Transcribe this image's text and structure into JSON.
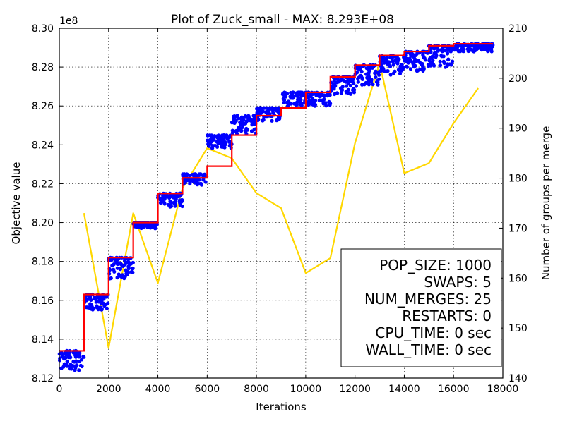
{
  "chart_data": {
    "type": "scatter",
    "title": "Plot of Zuck_small - MAX: 8.293E+08",
    "xlabel": "Iterations",
    "ylabel": "Objective value",
    "y2label": "Number of groups per merge",
    "y_offset_label": "1e8",
    "xlim": [
      0,
      18000
    ],
    "ylim": [
      8.12,
      8.3
    ],
    "y2lim": [
      140,
      210
    ],
    "xticks": [
      "0",
      "2000",
      "4000",
      "6000",
      "8000",
      "10000",
      "12000",
      "14000",
      "16000",
      "18000"
    ],
    "yticks": [
      "8.12",
      "8.14",
      "8.16",
      "8.18",
      "8.20",
      "8.22",
      "8.24",
      "8.26",
      "8.28",
      "8.30"
    ],
    "y2ticks": [
      "140",
      "150",
      "160",
      "170",
      "180",
      "190",
      "200",
      "210"
    ],
    "grid": true,
    "colors": {
      "population": "#0000ff",
      "best": "#ff0000",
      "groups": "#ffd700"
    },
    "series": [
      {
        "type": "step",
        "axis": "left",
        "color": "#ff0000",
        "x": [
          0,
          1000,
          2000,
          3000,
          4000,
          5000,
          6000,
          7000,
          8000,
          9000,
          10000,
          11000,
          12000,
          13000,
          14000,
          15000,
          16000,
          17600
        ],
        "values": [
          8.134,
          8.163,
          8.182,
          8.2,
          8.215,
          8.223,
          8.229,
          8.245,
          8.255,
          8.259,
          8.267,
          8.275,
          8.281,
          8.286,
          8.288,
          8.291,
          8.292,
          8.292
        ]
      },
      {
        "type": "scatter",
        "axis": "left",
        "color": "#0000ff",
        "bands": [
          {
            "x": [
              0,
              1000
            ],
            "y": [
              8.124,
              8.134
            ]
          },
          {
            "x": [
              1000,
              2000
            ],
            "y": [
              8.155,
              8.163
            ]
          },
          {
            "x": [
              2000,
              3000
            ],
            "y": [
              8.171,
              8.182
            ]
          },
          {
            "x": [
              3000,
              4000
            ],
            "y": [
              8.197,
              8.2
            ]
          },
          {
            "x": [
              4000,
              5000
            ],
            "y": [
              8.208,
              8.215
            ]
          },
          {
            "x": [
              5000,
              6000
            ],
            "y": [
              8.219,
              8.225
            ]
          },
          {
            "x": [
              6000,
              7000
            ],
            "y": [
              8.238,
              8.245
            ]
          },
          {
            "x": [
              7000,
              8000
            ],
            "y": [
              8.245,
              8.255
            ]
          },
          {
            "x": [
              8000,
              9000
            ],
            "y": [
              8.252,
              8.259
            ]
          },
          {
            "x": [
              9000,
              10000
            ],
            "y": [
              8.26,
              8.267
            ]
          },
          {
            "x": [
              10000,
              11000
            ],
            "y": [
              8.259,
              8.267
            ]
          },
          {
            "x": [
              11000,
              12000
            ],
            "y": [
              8.266,
              8.275
            ]
          },
          {
            "x": [
              12000,
              13000
            ],
            "y": [
              8.27,
              8.281
            ]
          },
          {
            "x": [
              13000,
              14000
            ],
            "y": [
              8.276,
              8.286
            ]
          },
          {
            "x": [
              14000,
              15000
            ],
            "y": [
              8.278,
              8.288
            ]
          },
          {
            "x": [
              15000,
              16000
            ],
            "y": [
              8.28,
              8.291
            ]
          },
          {
            "x": [
              16000,
              17600
            ],
            "y": [
              8.288,
              8.292
            ]
          }
        ]
      },
      {
        "type": "line",
        "axis": "right",
        "color": "#ffd700",
        "x": [
          1000,
          2000,
          3000,
          4000,
          5000,
          6000,
          7000,
          8000,
          9000,
          10000,
          11000,
          12000,
          13000,
          14000,
          15000,
          16000,
          17000
        ],
        "values": [
          173,
          146,
          173,
          159,
          178,
          186,
          184,
          177,
          174,
          161,
          164,
          187,
          203,
          181,
          183,
          191,
          198
        ]
      }
    ],
    "annotation": {
      "position": "lower-right",
      "lines": [
        "POP_SIZE: 1000",
        "SWAPS: 5",
        "NUM_MERGES: 25",
        "RESTARTS: 0",
        "CPU_TIME: 0 sec",
        "WALL_TIME: 0 sec"
      ]
    }
  }
}
